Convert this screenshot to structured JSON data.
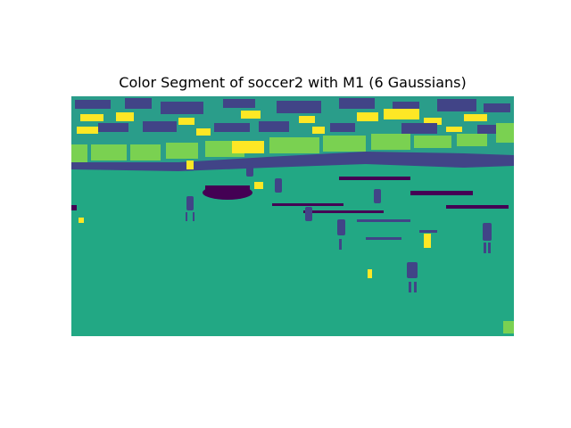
{
  "figure": {
    "title": "Color Segment of soccer2 with M1 (6 Gaussians)"
  },
  "colors": {
    "cluster_0": "#440154",
    "cluster_1": "#414487",
    "cluster_2": "#2a788e",
    "cluster_3": "#22a884",
    "cluster_4": "#7ad151",
    "cluster_5": "#fde725"
  }
}
